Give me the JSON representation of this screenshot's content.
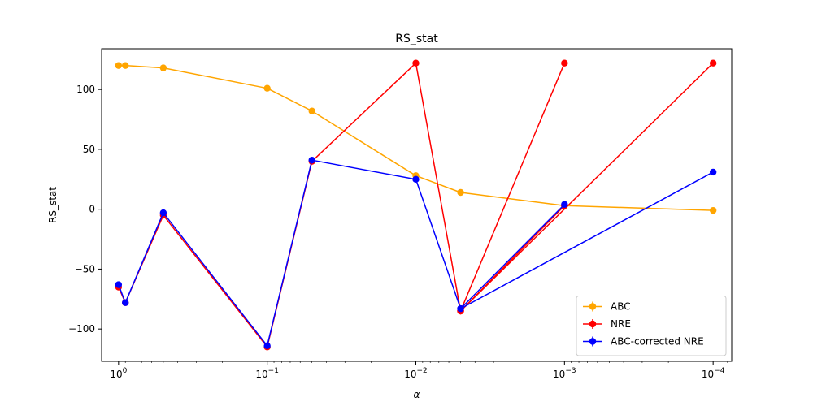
{
  "chart_data": {
    "type": "line",
    "title": "RS_stat",
    "xlabel": "α",
    "ylabel": "RS_stat",
    "xscale": "log",
    "x_axis_direction": "reversed",
    "xlim": [
      1.3,
      7.5e-05
    ],
    "ylim": [
      -127,
      134
    ],
    "xticks": [
      {
        "value": 1,
        "label": "10^0",
        "base": "10",
        "exp": "0"
      },
      {
        "value": 0.1,
        "label": "10^-1",
        "base": "10",
        "exp": "−1"
      },
      {
        "value": 0.01,
        "label": "10^-2",
        "base": "10",
        "exp": "−2"
      },
      {
        "value": 0.001,
        "label": "10^-3",
        "base": "10",
        "exp": "−3"
      },
      {
        "value": 0.0001,
        "label": "10^-4",
        "base": "10",
        "exp": "−4"
      }
    ],
    "yticks": [
      {
        "value": 100,
        "label": "100"
      },
      {
        "value": 50,
        "label": "50"
      },
      {
        "value": 0,
        "label": "0"
      },
      {
        "value": -50,
        "label": "−50"
      },
      {
        "value": -100,
        "label": "−100"
      }
    ],
    "grid": false,
    "legend_position": "lower-right",
    "series": [
      {
        "name": "ABC",
        "color": "#ffa500",
        "x": [
          1.0,
          0.9,
          0.5,
          0.1,
          0.05,
          0.01,
          0.005,
          0.001,
          0.0001
        ],
        "y": [
          120,
          120,
          118,
          101,
          82,
          28,
          14,
          3,
          -1
        ]
      },
      {
        "name": "NRE",
        "color": "#ff0000",
        "x": [
          1.0,
          0.9,
          0.5,
          0.1,
          0.05,
          0.01,
          0.005,
          0.001,
          0.005,
          0.0001,
          0.005,
          0.001
        ],
        "y": [
          -65,
          -78,
          -5,
          -115,
          40,
          122,
          -85,
          122,
          -85,
          122,
          -85,
          3
        ]
      },
      {
        "name": "ABC-corrected NRE",
        "color": "#0000ff",
        "x": [
          1.0,
          0.9,
          0.5,
          0.1,
          0.05,
          0.01,
          0.005,
          0.001,
          0.005,
          0.0001
        ],
        "y": [
          -63,
          -78,
          -3,
          -114,
          41,
          25,
          -83,
          4,
          -83,
          31
        ]
      }
    ]
  }
}
